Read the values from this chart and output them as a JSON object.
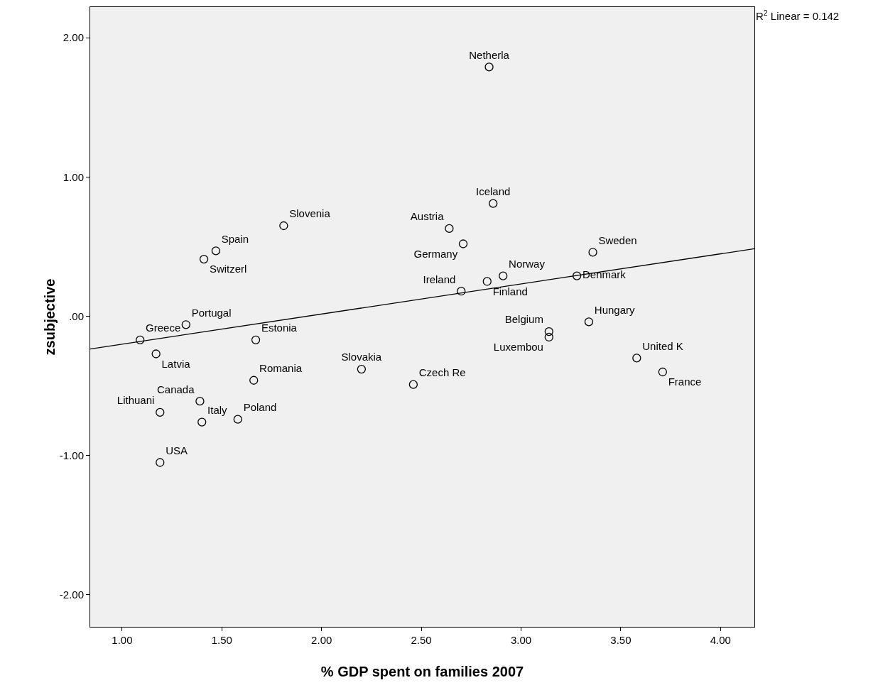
{
  "chart_data": {
    "type": "scatter",
    "xlabel": "% GDP spent on families 2007",
    "ylabel": "zsubjective",
    "xlim": [
      0.84,
      4.17
    ],
    "ylim": [
      -2.23,
      2.22
    ],
    "xticks": [
      {
        "value": 1,
        "label": "1.00"
      },
      {
        "value": 1.5,
        "label": "1.50"
      },
      {
        "value": 2,
        "label": "2.00"
      },
      {
        "value": 2.5,
        "label": "2.50"
      },
      {
        "value": 3,
        "label": "3.00"
      },
      {
        "value": 3.5,
        "label": "3.50"
      },
      {
        "value": 4,
        "label": "4.00"
      }
    ],
    "yticks": [
      {
        "value": -2,
        "label": "-2.00"
      },
      {
        "value": -1,
        "label": "-1.00"
      },
      {
        "value": 0,
        "label": ".00"
      },
      {
        "value": 1,
        "label": "1.00"
      },
      {
        "value": 2,
        "label": "2.00"
      }
    ],
    "grid": false,
    "marker": "circle",
    "annotations": [
      "R$^{2}$ Linear = 0.142"
    ],
    "series": [
      {
        "color": "#000000",
        "x": [
          2.84,
          2.86,
          2.64,
          2.71,
          2.91,
          2.83,
          2.7,
          3.36,
          3.28,
          3.34,
          3.14,
          3.14,
          3.58,
          3.71,
          1.81,
          1.47,
          1.41,
          1.32,
          1.09,
          1.17,
          1.67,
          2.2,
          2.46,
          1.66,
          1.39,
          1.4,
          1.58,
          1.19,
          1.19
        ],
        "values": [
          1.79,
          0.81,
          0.63,
          0.52,
          0.29,
          0.25,
          0.18,
          0.46,
          0.29,
          -0.04,
          -0.11,
          -0.15,
          -0.3,
          -0.4,
          0.65,
          0.47,
          0.41,
          -0.06,
          -0.17,
          -0.27,
          -0.17,
          -0.38,
          -0.49,
          -0.46,
          -0.61,
          -0.76,
          -0.74,
          -0.69,
          -1.05
        ],
        "value_labels": [
          "Netherla",
          "Iceland",
          "Austria",
          "Germany",
          "Norway",
          "Finland",
          "Ireland",
          "Sweden",
          "Denmark",
          "Hungary",
          "Belgium",
          "Luxembou",
          "United K",
          "France",
          "Slovenia",
          "Spain",
          "Switzerl",
          "Portugal",
          "Greece",
          "Latvia",
          "Estonia",
          "Slovakia",
          "Czech Re",
          "Romania",
          "Canada",
          "Italy",
          "Poland",
          "Lithuani",
          "USA"
        ]
      },
      {
        "type": "line",
        "color": "#000000",
        "line_style": "solid",
        "marker": "none",
        "x": [
          0.84,
          4.17
        ],
        "values": [
          -0.235,
          0.485
        ]
      }
    ]
  }
}
